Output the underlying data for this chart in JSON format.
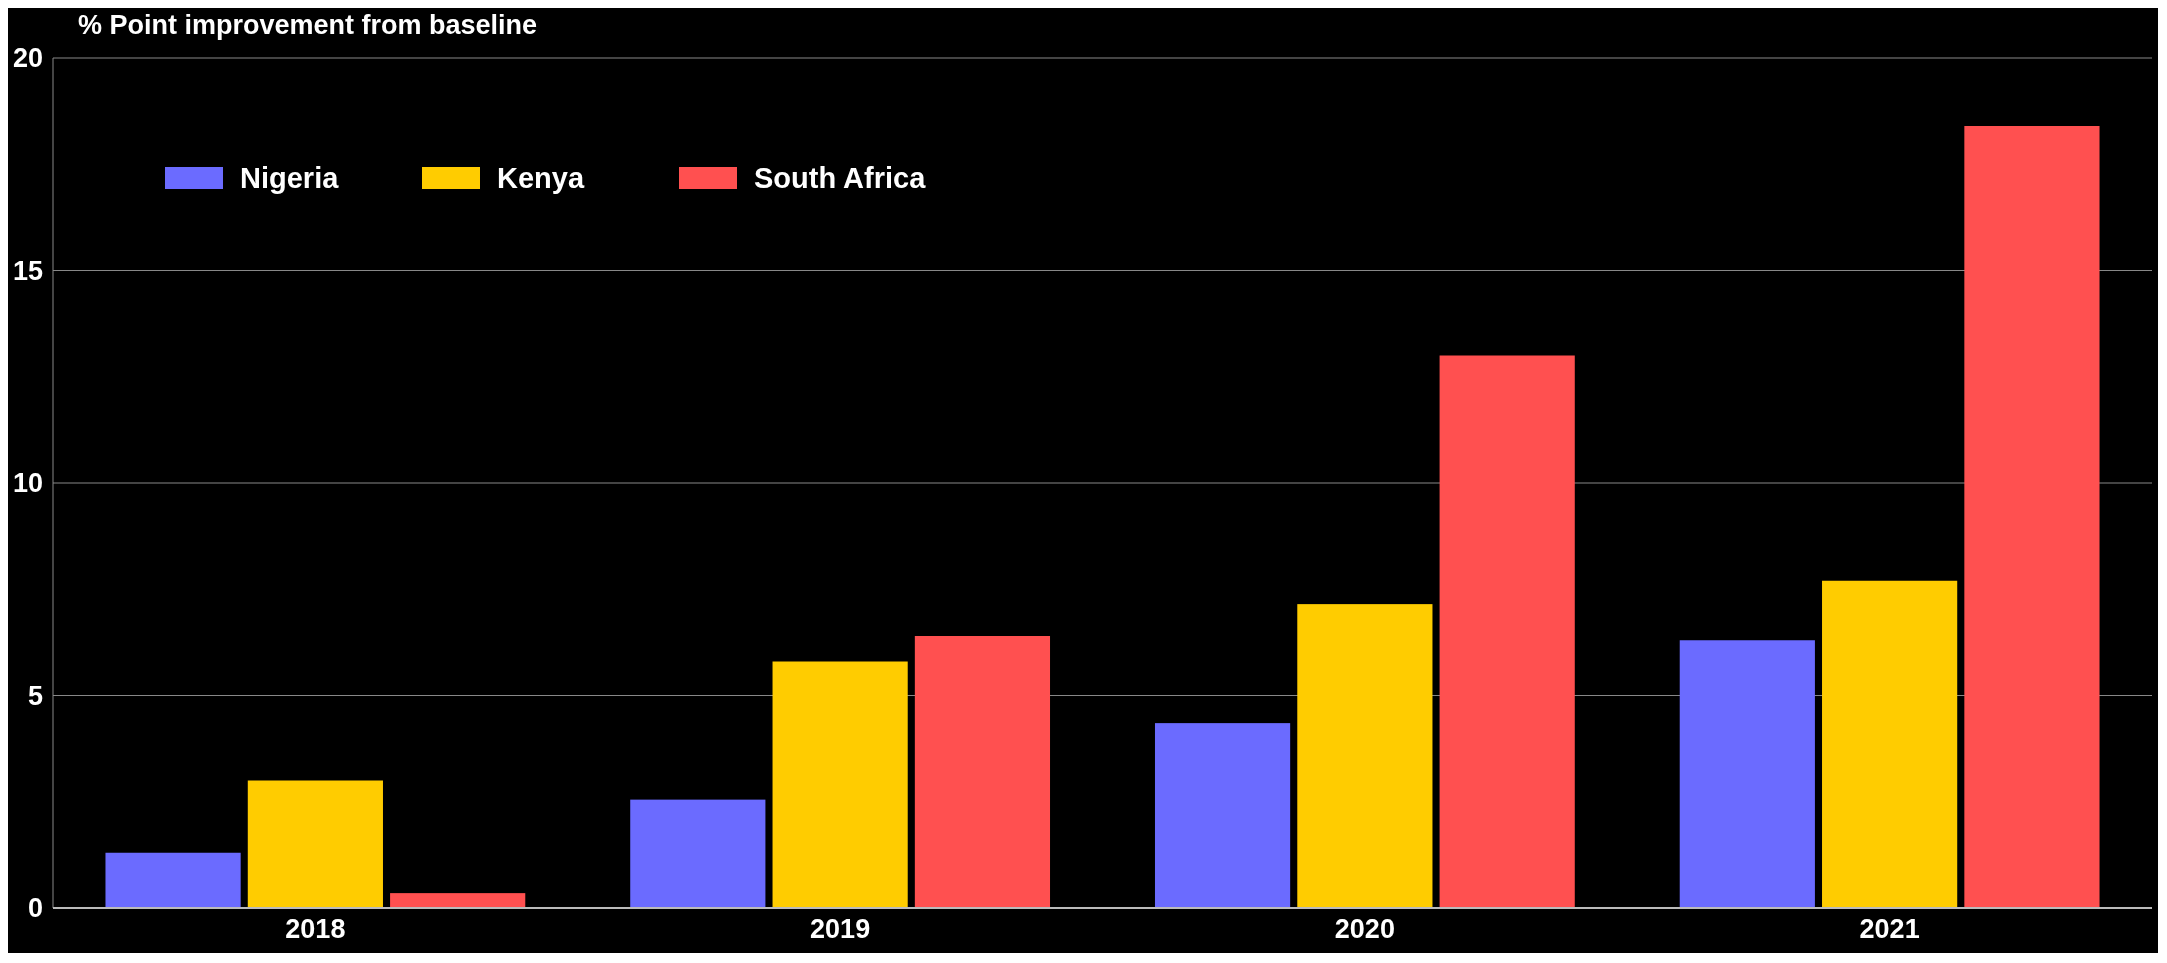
{
  "chart_data": {
    "type": "bar",
    "ylabel": "% Point improvement from baseline",
    "categories": [
      "2018",
      "2019",
      "2020",
      "2021"
    ],
    "series": [
      {
        "name": "Nigeria",
        "color": "#6b6bff",
        "values": [
          1.3,
          2.55,
          4.35,
          6.3
        ]
      },
      {
        "name": "Kenya",
        "color": "#ffcc00",
        "values": [
          3.0,
          5.8,
          7.15,
          7.7
        ]
      },
      {
        "name": "South Africa",
        "color": "#ff5050",
        "values": [
          0.35,
          6.4,
          13.0,
          18.4
        ]
      }
    ],
    "ylim": [
      0,
      20
    ],
    "yticks": [
      0,
      5,
      10,
      15,
      20
    ],
    "grid": "y",
    "legend": "top left"
  }
}
